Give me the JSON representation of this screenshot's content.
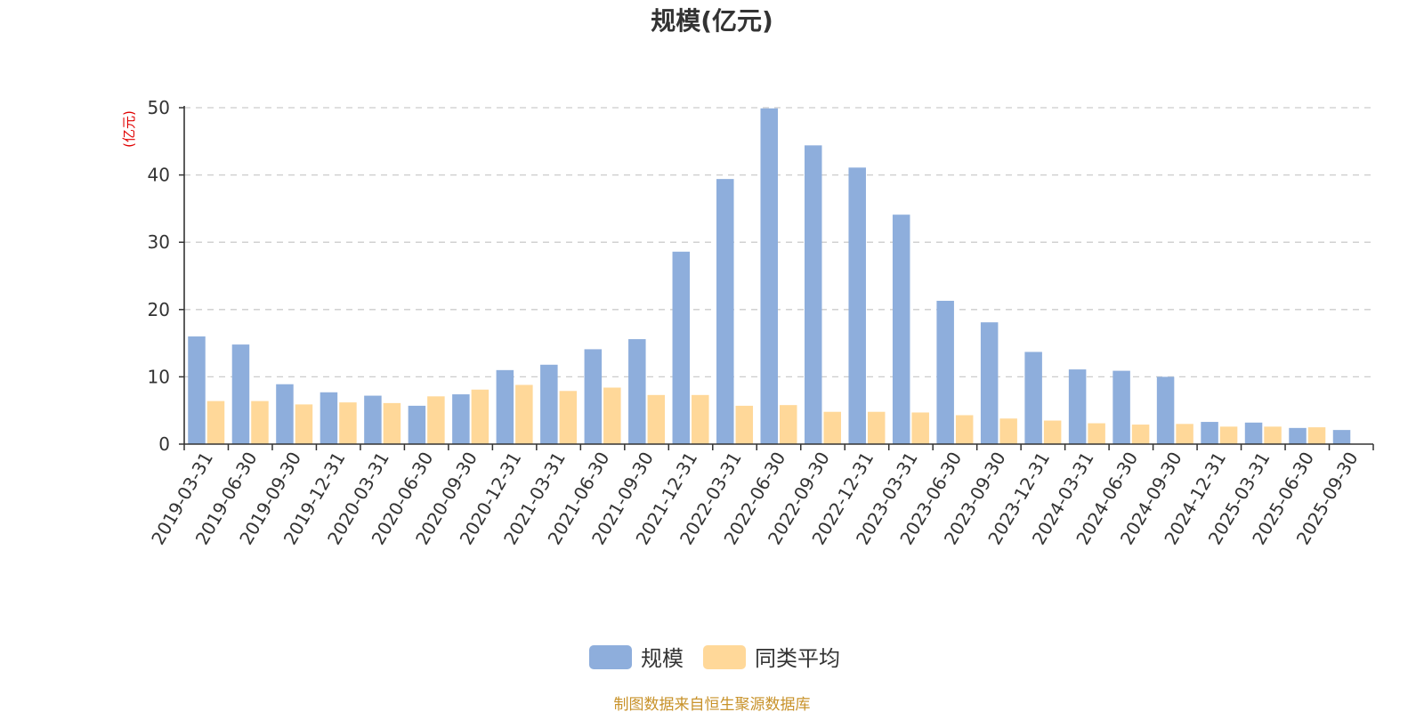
{
  "chart_data": {
    "type": "bar",
    "title": "规模(亿元)",
    "xlabel": "",
    "ylabel": "(亿元)",
    "ylim": [
      0,
      50
    ],
    "yticks": [
      0,
      10,
      20,
      30,
      40,
      50
    ],
    "grid": true,
    "legend_position": "bottom-center",
    "categories": [
      "2019-03-31",
      "2019-06-30",
      "2019-09-30",
      "2019-12-31",
      "2020-03-31",
      "2020-06-30",
      "2020-09-30",
      "2020-12-31",
      "2021-03-31",
      "2021-06-30",
      "2021-09-30",
      "2021-12-31",
      "2022-03-31",
      "2022-06-30",
      "2022-09-30",
      "2022-12-31",
      "2023-03-31",
      "2023-06-30",
      "2023-09-30",
      "2023-12-31",
      "2024-03-31",
      "2024-06-30",
      "2024-09-30",
      "2024-12-31",
      "2025-03-31",
      "2025-06-30",
      "2025-09-30"
    ],
    "series": [
      {
        "name": "规模",
        "color": "#8eaedc",
        "values": [
          16.0,
          14.8,
          8.9,
          7.7,
          7.2,
          5.7,
          7.4,
          11.0,
          11.8,
          14.1,
          15.6,
          28.6,
          39.4,
          49.9,
          44.4,
          41.1,
          34.1,
          21.3,
          18.1,
          13.7,
          11.1,
          10.9,
          10.0,
          3.3,
          3.2,
          2.4,
          2.1
        ]
      },
      {
        "name": "同类平均",
        "color": "#ffd899",
        "values": [
          6.4,
          6.4,
          5.9,
          6.2,
          6.1,
          7.1,
          8.1,
          8.8,
          7.9,
          8.4,
          7.3,
          7.3,
          5.7,
          5.8,
          4.8,
          4.8,
          4.7,
          4.3,
          3.8,
          3.5,
          3.1,
          2.9,
          3.0,
          2.6,
          2.6,
          2.5,
          null
        ]
      }
    ]
  },
  "source_note": "制图数据来自恒生聚源数据库",
  "colors": {
    "axis": "#333333",
    "grid": "#cccccc",
    "title": "#333333",
    "ylabel": "#e00000",
    "source": "#c8922a"
  }
}
